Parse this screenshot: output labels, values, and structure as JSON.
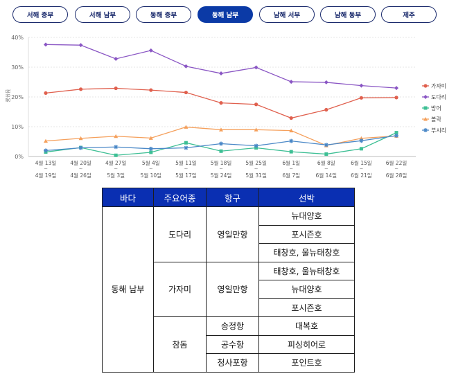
{
  "tabs": [
    {
      "label": "서해 중부",
      "active": false
    },
    {
      "label": "서해 남부",
      "active": false
    },
    {
      "label": "동해 중부",
      "active": false
    },
    {
      "label": "동해 남부",
      "active": true
    },
    {
      "label": "남해 서부",
      "active": false
    },
    {
      "label": "남해 동부",
      "active": false
    },
    {
      "label": "제주",
      "active": false
    }
  ],
  "chart_data": {
    "type": "line",
    "ylabel": "점유율",
    "ylim": [
      0,
      40
    ],
    "yticks": [
      "0%",
      "10%",
      "20%",
      "30%",
      "40%"
    ],
    "categories": [
      [
        "4월 13일",
        "~",
        "4월 19일"
      ],
      [
        "4월 20일",
        "~",
        "4월 26일"
      ],
      [
        "4월 27일",
        "~",
        "5월 3일"
      ],
      [
        "5월 4일",
        "~",
        "5월 10일"
      ],
      [
        "5월 11일",
        "~",
        "5월 17일"
      ],
      [
        "5월 18일",
        "~",
        "5월 24일"
      ],
      [
        "5월 25일",
        "~",
        "5월 31일"
      ],
      [
        "6월 1일",
        "~",
        "6월 7일"
      ],
      [
        "6월 8일",
        "~",
        "6월 14일"
      ],
      [
        "6월 15일",
        "~",
        "6월 21일"
      ],
      [
        "6월 22일",
        "~",
        "6월 28일"
      ]
    ],
    "legend_position": "right",
    "series": [
      {
        "name": "가자미",
        "color": "#e0604e",
        "marker": "circle",
        "values": [
          21.3,
          22.6,
          22.9,
          22.3,
          21.5,
          18.0,
          17.5,
          12.9,
          15.7,
          19.7,
          19.8
        ]
      },
      {
        "name": "도다리",
        "color": "#8a56c4",
        "marker": "diamond",
        "values": [
          37.6,
          37.4,
          32.8,
          35.6,
          30.3,
          27.9,
          29.9,
          25.1,
          24.9,
          23.8,
          23.0
        ]
      },
      {
        "name": "방어",
        "color": "#3dbf94",
        "marker": "square",
        "values": [
          1.5,
          3.0,
          0.4,
          1.4,
          4.6,
          1.8,
          2.9,
          1.6,
          0.8,
          2.6,
          8.0
        ]
      },
      {
        "name": "볼락",
        "color": "#f5a05c",
        "marker": "triangle",
        "values": [
          5.2,
          6.1,
          6.8,
          6.2,
          9.9,
          9.0,
          9.0,
          8.7,
          3.7,
          6.1,
          6.9
        ]
      },
      {
        "name": "부시리",
        "color": "#4a88c7",
        "marker": "star",
        "values": [
          2.0,
          2.9,
          3.2,
          2.6,
          2.9,
          4.3,
          3.6,
          5.2,
          3.9,
          5.3,
          7.0
        ]
      }
    ]
  },
  "table": {
    "headers": [
      "바다",
      "주요어종",
      "항구",
      "선박"
    ],
    "sea": "동해 남부",
    "groups": [
      {
        "species": "도다리",
        "ports": [
          {
            "name": "영일만항",
            "boats": [
              "뉴대양호",
              "포시즌호",
              "태창호, 울뉴태창호"
            ]
          }
        ]
      },
      {
        "species": "가자미",
        "ports": [
          {
            "name": "영일만항",
            "boats": [
              "태창호, 울뉴태창호",
              "뉴대양호",
              "포시즌호"
            ]
          }
        ]
      },
      {
        "species": "참돔",
        "ports": [
          {
            "name": "송정항",
            "boats": [
              "대복호"
            ]
          },
          {
            "name": "공수항",
            "boats": [
              "피싱히어로"
            ]
          },
          {
            "name": "청사포항",
            "boats": [
              "포인트호"
            ]
          }
        ]
      }
    ]
  }
}
